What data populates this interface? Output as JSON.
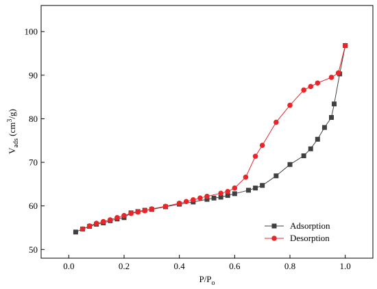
{
  "chart_data": {
    "type": "line",
    "xlabel": {
      "main": "P/P",
      "sub": "o"
    },
    "ylabel": {
      "main": "V",
      "sub": "ads",
      "tail1": " (cm",
      "sup": "3",
      "tail2": "/g)"
    },
    "xlim": [
      -0.1,
      1.1
    ],
    "ylim": [
      48,
      106
    ],
    "xticks": [
      0.0,
      0.2,
      0.4,
      0.6,
      0.8,
      1.0
    ],
    "xtick_labels": [
      "0.0",
      "0.2",
      "0.4",
      "0.6",
      "0.8",
      "1.0"
    ],
    "yticks": [
      50,
      60,
      70,
      80,
      90,
      100
    ],
    "ytick_labels": [
      "50",
      "60",
      "70",
      "80",
      "90",
      "100"
    ],
    "grid": false,
    "legend_position": "bottom-right",
    "series": [
      {
        "name": "Adsorption",
        "color": "#404040",
        "marker": "square",
        "x": [
          0.025,
          0.05,
          0.075,
          0.1,
          0.125,
          0.15,
          0.175,
          0.2,
          0.225,
          0.25,
          0.275,
          0.3,
          0.35,
          0.4,
          0.45,
          0.5,
          0.525,
          0.55,
          0.575,
          0.6,
          0.65,
          0.675,
          0.7,
          0.75,
          0.8,
          0.85,
          0.875,
          0.9,
          0.925,
          0.95,
          0.96,
          0.98,
          1.0
        ],
        "y": [
          54.0,
          54.7,
          55.3,
          55.8,
          56.1,
          56.6,
          57.0,
          57.3,
          58.4,
          58.7,
          59.0,
          59.2,
          59.8,
          60.4,
          60.9,
          61.5,
          61.8,
          62.0,
          62.4,
          62.8,
          63.6,
          64.1,
          64.7,
          66.9,
          69.5,
          71.5,
          73.1,
          75.3,
          78.0,
          80.3,
          83.4,
          90.3,
          96.8
        ]
      },
      {
        "name": "Desorption",
        "color": "#e8262a",
        "marker": "circle",
        "x": [
          1.0,
          0.975,
          0.95,
          0.9,
          0.875,
          0.85,
          0.8,
          0.75,
          0.7,
          0.675,
          0.64,
          0.6,
          0.575,
          0.55,
          0.5,
          0.475,
          0.45,
          0.425,
          0.4,
          0.35,
          0.3,
          0.275,
          0.25,
          0.225,
          0.2,
          0.175,
          0.15,
          0.125,
          0.1,
          0.075,
          0.05
        ],
        "y": [
          96.8,
          90.5,
          89.5,
          88.2,
          87.4,
          86.6,
          83.1,
          79.2,
          73.9,
          71.4,
          66.6,
          64.1,
          63.3,
          62.9,
          62.2,
          61.8,
          61.4,
          61.0,
          60.6,
          59.9,
          59.3,
          58.9,
          58.6,
          58.3,
          57.8,
          57.3,
          56.8,
          56.4,
          56.0,
          55.4,
          54.7
        ]
      }
    ]
  }
}
